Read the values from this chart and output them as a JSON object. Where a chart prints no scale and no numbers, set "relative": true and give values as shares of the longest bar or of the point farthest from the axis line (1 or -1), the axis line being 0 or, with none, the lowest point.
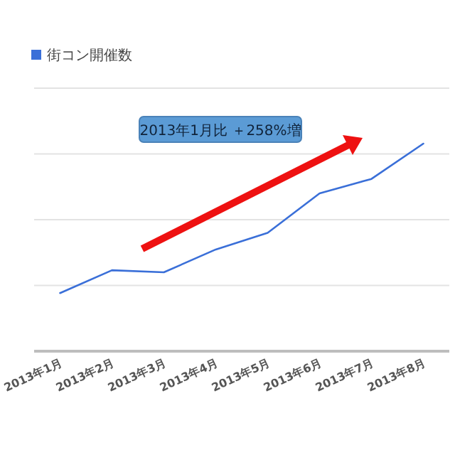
{
  "chart_data": {
    "type": "line",
    "relative": true,
    "categories": [
      "2013年1月",
      "2013年2月",
      "2013年3月",
      "2013年4月",
      "2013年5月",
      "2013年6月",
      "2013年7月",
      "2013年8月"
    ],
    "series": [
      {
        "name": "街コン開催数",
        "color": "#3a6fd8",
        "values": [
          0.28,
          0.39,
          0.38,
          0.49,
          0.57,
          0.76,
          0.83,
          1
        ]
      }
    ],
    "annotations": [
      "2013年1月比 ＋258%増"
    ],
    "grid": "y",
    "legend": "top left",
    "marker": "none",
    "line_style": "solid"
  }
}
